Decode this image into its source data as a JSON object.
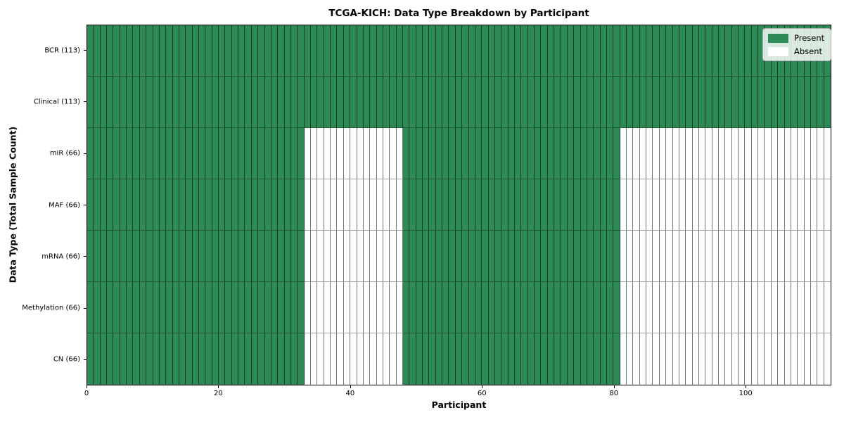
{
  "figure": {
    "title": "TCGA-KICH: Data Type Breakdown by Participant",
    "x_axis_label": "Participant",
    "y_axis_label": "Data Type (Total Sample Count)"
  },
  "chart_data": {
    "type": "heatmap",
    "title": "TCGA-KICH: Data Type Breakdown by Participant",
    "xlabel": "Participant",
    "ylabel": "Data Type (Total Sample Count)",
    "n_participants": 113,
    "x_range": [
      0,
      113
    ],
    "x_ticks": [
      0,
      20,
      40,
      60,
      80,
      100
    ],
    "grid": true,
    "legend_position": "top-right",
    "rows": [
      {
        "name": "BCR",
        "label": "BCR (113)",
        "total_samples": 113,
        "present_ranges": [
          [
            0,
            113
          ]
        ]
      },
      {
        "name": "Clinical",
        "label": "Clinical (113)",
        "total_samples": 113,
        "present_ranges": [
          [
            0,
            113
          ]
        ]
      },
      {
        "name": "miR",
        "label": "miR (66)",
        "total_samples": 66,
        "present_ranges": [
          [
            0,
            33
          ],
          [
            48,
            81
          ]
        ]
      },
      {
        "name": "MAF",
        "label": "MAF (66)",
        "total_samples": 66,
        "present_ranges": [
          [
            0,
            33
          ],
          [
            48,
            81
          ]
        ]
      },
      {
        "name": "mRNA",
        "label": "mRNA (66)",
        "total_samples": 66,
        "present_ranges": [
          [
            0,
            33
          ],
          [
            48,
            81
          ]
        ]
      },
      {
        "name": "Methylation",
        "label": "Methylation (66)",
        "total_samples": 66,
        "present_ranges": [
          [
            0,
            33
          ],
          [
            48,
            81
          ]
        ]
      },
      {
        "name": "CN",
        "label": "CN (66)",
        "total_samples": 66,
        "present_ranges": [
          [
            0,
            33
          ],
          [
            48,
            81
          ]
        ]
      }
    ],
    "legend": [
      {
        "label": "Present",
        "color": "#2e8b57"
      },
      {
        "label": "Absent",
        "color": "#ffffff"
      }
    ],
    "colors": {
      "present": "#2e8b57",
      "absent": "#ffffff",
      "spine": "#000000"
    }
  }
}
